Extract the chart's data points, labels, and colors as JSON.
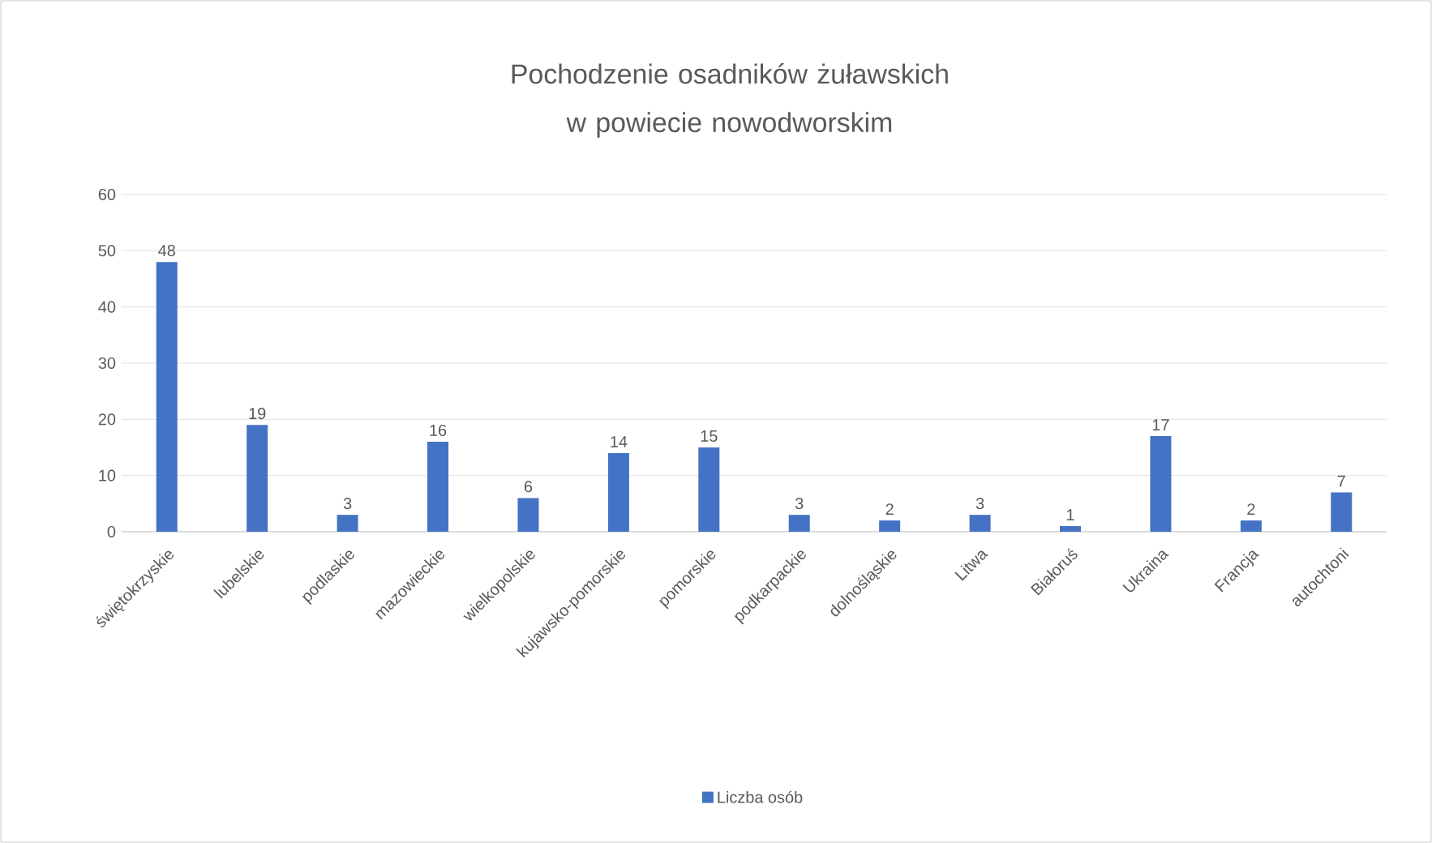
{
  "chart_data": {
    "type": "bar",
    "title": "Pochodzenie osadników żuławskich w powiecie nowodworskim",
    "categories": [
      "świętokrzyskie",
      "lubelskie",
      "podlaskie",
      "mazowieckie",
      "wielkopolskie",
      "kujawsko-pomorskie",
      "pomorskie",
      "podkarpackie",
      "dolnośląskie",
      "Litwa",
      "Białoruś",
      "Ukraina",
      "Francja",
      "autochtoni"
    ],
    "series": [
      {
        "name": "Liczba osób",
        "color": "#4472c4",
        "values": [
          48,
          19,
          3,
          16,
          6,
          14,
          15,
          3,
          2,
          3,
          1,
          17,
          2,
          7
        ]
      }
    ],
    "ylim": [
      0,
      60
    ],
    "yticks": [
      0,
      10,
      20,
      30,
      40,
      50,
      60
    ],
    "grid": "y",
    "legend": "bottom",
    "data_labels": true
  }
}
